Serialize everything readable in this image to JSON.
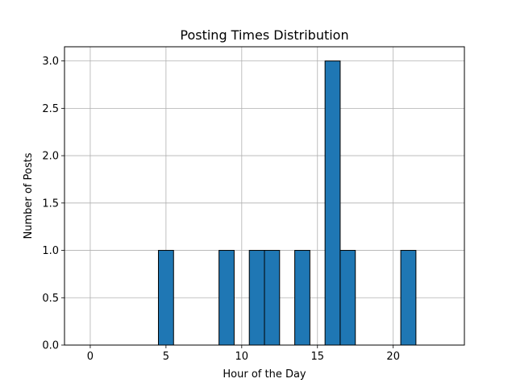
{
  "chart_data": {
    "type": "bar",
    "subtype": "histogram",
    "title": "Posting Times Distribution",
    "xlabel": "Hour of the Day",
    "ylabel": "Number of Posts",
    "bins": [
      {
        "start": 0,
        "end": 1,
        "value": 0
      },
      {
        "start": 1,
        "end": 2,
        "value": 0
      },
      {
        "start": 2,
        "end": 3,
        "value": 0
      },
      {
        "start": 3,
        "end": 4,
        "value": 0
      },
      {
        "start": 4,
        "end": 5,
        "value": 0
      },
      {
        "start": 5,
        "end": 6,
        "value": 1
      },
      {
        "start": 6,
        "end": 7,
        "value": 0
      },
      {
        "start": 7,
        "end": 8,
        "value": 0
      },
      {
        "start": 8,
        "end": 9,
        "value": 0
      },
      {
        "start": 9,
        "end": 10,
        "value": 1
      },
      {
        "start": 10,
        "end": 11,
        "value": 0
      },
      {
        "start": 11,
        "end": 12,
        "value": 1
      },
      {
        "start": 12,
        "end": 13,
        "value": 1
      },
      {
        "start": 13,
        "end": 14,
        "value": 0
      },
      {
        "start": 14,
        "end": 15,
        "value": 1
      },
      {
        "start": 15,
        "end": 16,
        "value": 0
      },
      {
        "start": 16,
        "end": 17,
        "value": 3
      },
      {
        "start": 17,
        "end": 18,
        "value": 1
      },
      {
        "start": 18,
        "end": 19,
        "value": 0
      },
      {
        "start": 19,
        "end": 20,
        "value": 0
      },
      {
        "start": 20,
        "end": 21,
        "value": 0
      },
      {
        "start": 21,
        "end": 22,
        "value": 1
      },
      {
        "start": 22,
        "end": 23,
        "value": 0
      },
      {
        "start": 23,
        "end": 24,
        "value": 0
      }
    ],
    "bin_offset": -0.5,
    "xlim": [
      -1.7,
      24.7
    ],
    "ylim": [
      0,
      3.15
    ],
    "xticks": [
      0,
      5,
      10,
      15,
      20
    ],
    "yticks": [
      0.0,
      0.5,
      1.0,
      1.5,
      2.0,
      2.5,
      3.0
    ],
    "xtick_labels": [
      "0",
      "5",
      "10",
      "15",
      "20"
    ],
    "ytick_labels": [
      "0.0",
      "0.5",
      "1.0",
      "1.5",
      "2.0",
      "2.5",
      "3.0"
    ],
    "grid": true,
    "colors": {
      "bar": "#1f77b4",
      "edge": "#000000",
      "grid": "#b0b0b0"
    }
  }
}
